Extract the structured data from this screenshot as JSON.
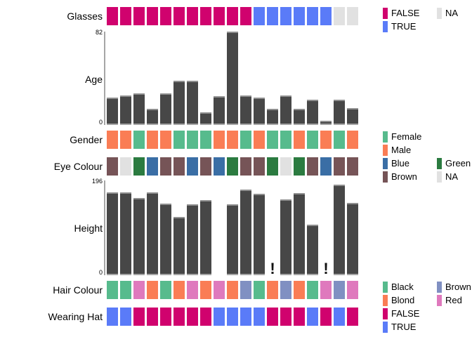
{
  "figure": {
    "n_columns": 19,
    "bar_color": "#474747",
    "background": "#ffffff"
  },
  "chart_data": [
    {
      "type": "heatmap",
      "title": "Glasses",
      "values": [
        "FALSE",
        "FALSE",
        "FALSE",
        "FALSE",
        "FALSE",
        "FALSE",
        "FALSE",
        "FALSE",
        "FALSE",
        "FALSE",
        "FALSE",
        "TRUE",
        "TRUE",
        "TRUE",
        "TRUE",
        "TRUE",
        "TRUE",
        "NA",
        "NA"
      ],
      "palette": {
        "FALSE": "#d0026e",
        "TRUE": "#5a7bf8",
        "NA": "#e1e1e1"
      },
      "legend_items": [
        {
          "label": "FALSE",
          "color": "#d0026e"
        },
        {
          "label": "NA",
          "color": "#e1e1e1"
        },
        {
          "label": "TRUE",
          "color": "#5a7bf8"
        }
      ]
    },
    {
      "type": "bar",
      "title": "Age",
      "values": [
        24,
        26,
        28,
        14,
        28,
        39,
        39,
        11,
        25,
        82,
        26,
        24,
        14,
        26,
        14,
        22,
        4,
        22,
        15
      ],
      "ylim": [
        0,
        82
      ],
      "y_axis": {
        "top_label": "82",
        "bottom_label": "0"
      },
      "missing_marked_slots": []
    },
    {
      "type": "heatmap",
      "title": "Gender",
      "values": [
        "Male",
        "Male",
        "Female",
        "Male",
        "Male",
        "Female",
        "Female",
        "Female",
        "Male",
        "Male",
        "Female",
        "Male",
        "Female",
        "Female",
        "Male",
        "Female",
        "Male",
        "Female",
        "Male"
      ],
      "palette": {
        "Female": "#57bb8d",
        "Male": "#fa7d55"
      },
      "legend_items": [
        {
          "label": "Female",
          "color": "#57bb8d"
        },
        {
          "label": "Male",
          "color": "#fa7d55"
        }
      ]
    },
    {
      "type": "heatmap",
      "title": "Eye Colour",
      "values": [
        "Brown",
        "NA",
        "Green",
        "Blue",
        "Brown",
        "Brown",
        "Blue",
        "Brown",
        "Blue",
        "Green",
        "Brown",
        "Brown",
        "Green",
        "NA",
        "Green",
        "Brown",
        "Blue",
        "Brown",
        "Brown"
      ],
      "palette": {
        "Blue": "#3a6ea5",
        "Brown": "#765457",
        "Green": "#2b7b40",
        "NA": "#e1e1e1"
      },
      "legend_items": [
        {
          "label": "Blue",
          "color": "#3a6ea5"
        },
        {
          "label": "Green",
          "color": "#2b7b40"
        },
        {
          "label": "Brown",
          "color": "#765457"
        },
        {
          "label": "NA",
          "color": "#e1e1e1"
        }
      ]
    },
    {
      "type": "bar",
      "title": "Height",
      "values": [
        171,
        171,
        159,
        172,
        148,
        120,
        146,
        155,
        null,
        147,
        177,
        169,
        null,
        157,
        170,
        105,
        null,
        187,
        149
      ],
      "ylim": [
        0,
        196
      ],
      "y_axis": {
        "top_label": "196",
        "bottom_label": "0"
      },
      "missing_marked_slots": [
        13,
        17
      ],
      "missing_mark_glyph": "!"
    },
    {
      "type": "heatmap",
      "title": "Hair Colour",
      "values": [
        "Black",
        "Black",
        "Red",
        "Blond",
        "Black",
        "Blond",
        "Red",
        "Blond",
        "Red",
        "Blond",
        "Brown",
        "Black",
        "Blond",
        "Brown",
        "Blond",
        "Black",
        "Red",
        "Brown",
        "Red"
      ],
      "palette": {
        "Black": "#57bb8d",
        "Blond": "#fa7d55",
        "Brown": "#8090c2",
        "Red": "#df79bd"
      },
      "legend_items": [
        {
          "label": "Black",
          "color": "#57bb8d"
        },
        {
          "label": "Brown",
          "color": "#8090c2"
        },
        {
          "label": "Blond",
          "color": "#fa7d55"
        },
        {
          "label": "Red",
          "color": "#df79bd"
        }
      ]
    },
    {
      "type": "heatmap",
      "title": "Wearing Hat",
      "values": [
        "TRUE",
        "TRUE",
        "FALSE",
        "FALSE",
        "FALSE",
        "FALSE",
        "FALSE",
        "FALSE",
        "TRUE",
        "TRUE",
        "TRUE",
        "TRUE",
        "FALSE",
        "FALSE",
        "FALSE",
        "TRUE",
        "FALSE",
        "TRUE",
        "FALSE"
      ],
      "palette": {
        "FALSE": "#d0026e",
        "TRUE": "#5a7bf8"
      },
      "legend_items": [
        {
          "label": "FALSE",
          "color": "#d0026e"
        },
        {
          "label": "TRUE",
          "color": "#5a7bf8"
        }
      ]
    }
  ]
}
